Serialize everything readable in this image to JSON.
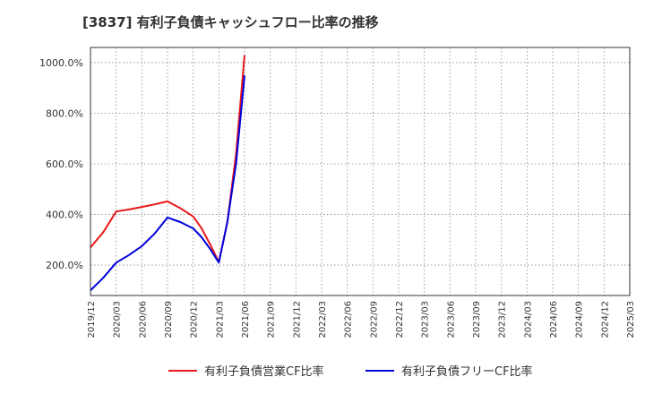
{
  "chart_data": {
    "type": "line",
    "title": "[3837]  有利子負債キャッシュフロー比率の推移",
    "xlabel": "",
    "ylabel": "",
    "ylim": [
      80,
      1060
    ],
    "grid": true,
    "legend_position": "bottom",
    "y_ticks": [
      200,
      400,
      600,
      800,
      1000
    ],
    "y_tick_labels": [
      "200.0%",
      "400.0%",
      "600.0%",
      "800.0%",
      "1000.0%"
    ],
    "x_tick_labels": [
      "2019/12",
      "2020/03",
      "2020/06",
      "2020/09",
      "2020/12",
      "2021/03",
      "2021/06",
      "2021/09",
      "2021/12",
      "2022/03",
      "2022/06",
      "2022/09",
      "2022/12",
      "2023/03",
      "2023/06",
      "2023/09",
      "2023/12",
      "2024/03",
      "2024/06",
      "2024/09",
      "2024/12",
      "2025/03"
    ],
    "series": [
      {
        "name": "有利子負債営業CF比率",
        "color": "#e8191a",
        "x": [
          0,
          0.5,
          1,
          1.5,
          2,
          2.5,
          3,
          3.5,
          4,
          4.33,
          4.67,
          5,
          5.33,
          5.67,
          6
        ],
        "values": [
          270,
          330,
          412,
          420,
          430,
          440,
          452,
          425,
          392,
          345,
          280,
          212,
          370,
          640,
          1030
        ]
      },
      {
        "name": "有利子負債フリーCF比率",
        "color": "#0000dd",
        "x": [
          0,
          0.5,
          1,
          1.5,
          2,
          2.5,
          3,
          3.5,
          4,
          4.33,
          4.67,
          5,
          5.33,
          5.67,
          6
        ],
        "values": [
          100,
          150,
          210,
          240,
          275,
          325,
          388,
          370,
          345,
          310,
          262,
          210,
          370,
          600,
          950
        ]
      }
    ]
  }
}
